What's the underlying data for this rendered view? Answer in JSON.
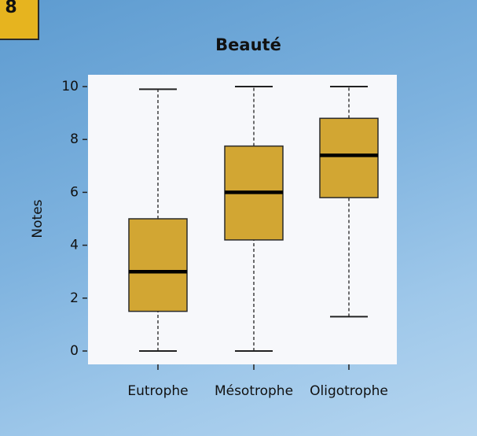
{
  "badge": "8",
  "chart_data": {
    "type": "box",
    "title": "Beauté",
    "y_label": "Notes",
    "categories": [
      "Eutrophe",
      "Mésotrophe",
      "Oligotrophe"
    ],
    "values": [
      {
        "min": 0,
        "q1": 1.5,
        "median": 3.0,
        "q3": 5.0,
        "max": 9.9
      },
      {
        "min": 0,
        "q1": 4.2,
        "median": 6.0,
        "q3": 7.75,
        "max": 10
      },
      {
        "min": 1.3,
        "q1": 5.8,
        "median": 7.4,
        "q3": 8.8,
        "max": 10
      }
    ],
    "color": "#d2a633",
    "ylim": [
      0,
      10
    ],
    "yticks": [
      0,
      2,
      4,
      6,
      8,
      10
    ],
    "grid": false
  }
}
